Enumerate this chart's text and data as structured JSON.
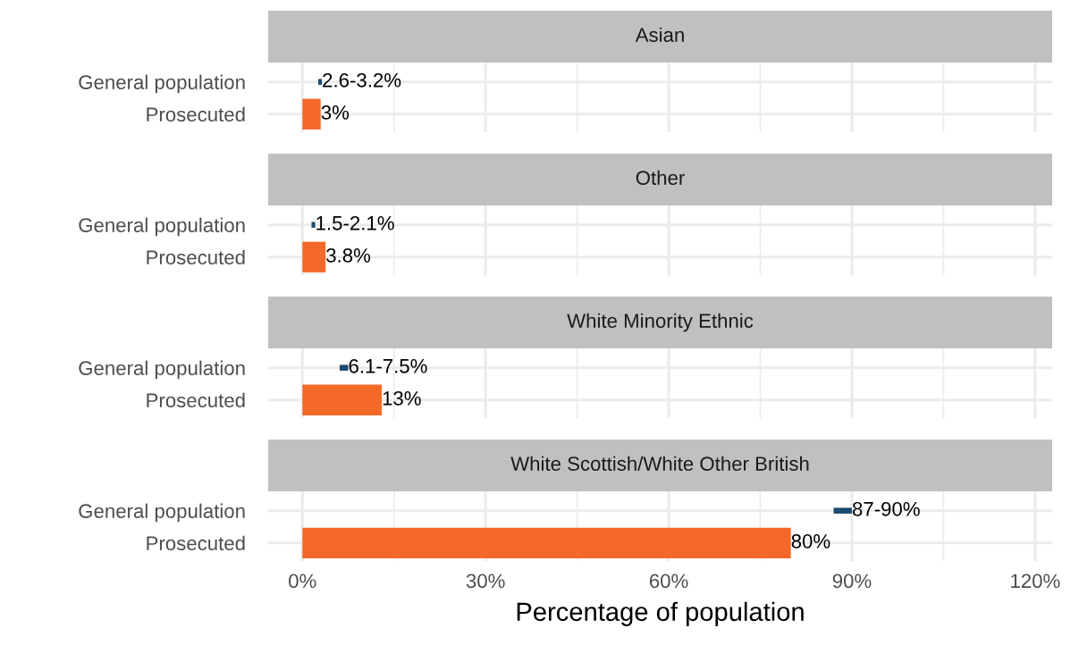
{
  "chart_data": [
    {
      "type": "bar",
      "orientation": "horizontal",
      "title": "Asian",
      "categories": [
        "General population",
        "Prosecuted"
      ],
      "base": [
        2.6,
        null
      ],
      "values": [
        0.6,
        3
      ],
      "colors": [
        "#1b4a6e",
        "#f4692a"
      ],
      "value_labels": [
        null,
        "3%"
      ],
      "annotations": [
        {
          "text": "2.6-3.2%",
          "x": 3.2,
          "y": "General population"
        }
      ],
      "xlim": [
        -5.6,
        122.8
      ],
      "grid": true,
      "tick_labels": "y"
    },
    {
      "type": "bar",
      "orientation": "horizontal",
      "title": "Other",
      "categories": [
        "General population",
        "Prosecuted"
      ],
      "base": [
        1.5,
        null
      ],
      "values": [
        0.6,
        3.8
      ],
      "colors": [
        "#1b4a6e",
        "#f4692a"
      ],
      "value_labels": [
        null,
        "3.8%"
      ],
      "annotations": [
        {
          "text": "1.5-2.1%",
          "x": 2.1,
          "y": "General population"
        }
      ],
      "xlim": [
        -5.6,
        122.8
      ],
      "grid": true,
      "tick_labels": "y"
    },
    {
      "type": "bar",
      "orientation": "horizontal",
      "title": "White Minority Ethnic",
      "categories": [
        "General population",
        "Prosecuted"
      ],
      "base": [
        6.1,
        null
      ],
      "values": [
        1.4,
        13
      ],
      "colors": [
        "#1b4a6e",
        "#f4692a"
      ],
      "value_labels": [
        null,
        "13%"
      ],
      "annotations": [
        {
          "text": "6.1-7.5%",
          "x": 7.5,
          "y": "General population"
        }
      ],
      "xlim": [
        -5.6,
        122.8
      ],
      "grid": true,
      "tick_labels": "y"
    },
    {
      "type": "bar",
      "orientation": "horizontal",
      "title": "White Scottish/White Other British",
      "categories": [
        "General population",
        "Prosecuted"
      ],
      "base": [
        87,
        null
      ],
      "values": [
        3,
        80
      ],
      "colors": [
        "#1b4a6e",
        "#f4692a"
      ],
      "value_labels": [
        null,
        "80%"
      ],
      "annotations": [
        {
          "text": "87-90%",
          "x": 90,
          "y": "General population"
        }
      ],
      "xlim": [
        -5.6,
        122.8
      ],
      "xticks": [
        {
          "value": 0,
          "label": "0%"
        },
        {
          "value": 30,
          "label": "30%"
        },
        {
          "value": 60,
          "label": "60%"
        },
        {
          "value": 90,
          "label": "90%"
        },
        {
          "value": 120,
          "label": "120%"
        }
      ],
      "grid": true,
      "xlabel": "Percentage of population"
    }
  ]
}
